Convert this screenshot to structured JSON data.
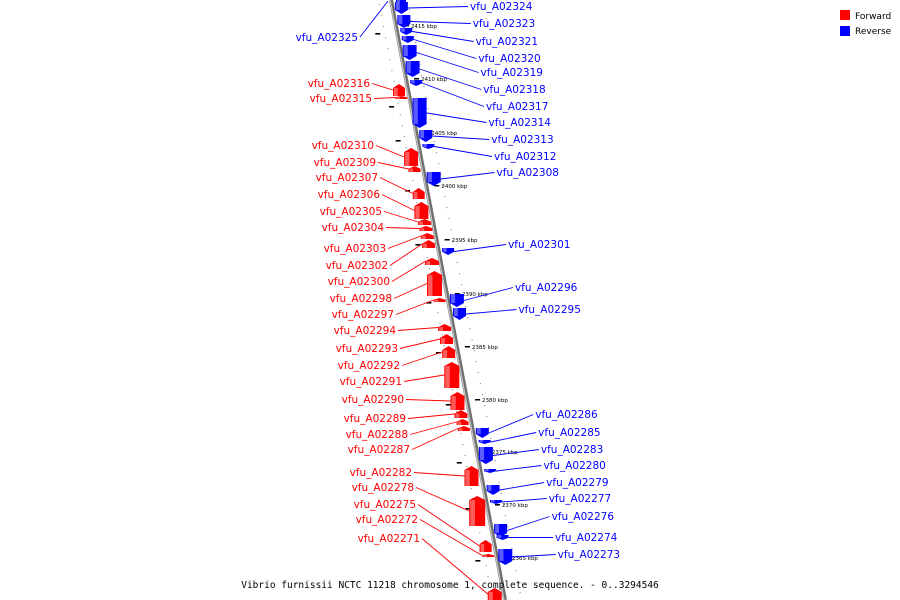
{
  "caption": "Vibrio furnissii NCTC 11218 chromosome 1, complete sequence. - 0..3294546",
  "legend": [
    {
      "label": "Forward",
      "color": "#ff0000"
    },
    {
      "label": "Reverse",
      "color": "#0000ff"
    }
  ],
  "colors": {
    "forward": "#ff0000",
    "reverse": "#0000ff",
    "backbone": "#808080"
  },
  "kbp_marks": [
    "2415 kbp",
    "2410 kbp",
    "2405 kbp",
    "2400 kbp",
    "2395 kbp",
    "2390 kbp",
    "2385 kbp",
    "2380 kbp",
    "2375 kbp",
    "2370 kbp",
    "2365 kbp"
  ],
  "forward_genes": [
    "vfu_A02316",
    "vfu_A02315",
    "vfu_A02310",
    "vfu_A02309",
    "vfu_A02307",
    "vfu_A02306",
    "vfu_A02305",
    "vfu_A02304",
    "vfu_A02303",
    "vfu_A02302",
    "vfu_A02300",
    "vfu_A02298",
    "vfu_A02297",
    "vfu_A02294",
    "vfu_A02293",
    "vfu_A02292",
    "vfu_A02291",
    "vfu_A02290",
    "vfu_A02289",
    "vfu_A02288",
    "vfu_A02287",
    "vfu_A02282",
    "vfu_A02278",
    "vfu_A02275",
    "vfu_A02272",
    "vfu_A02271"
  ],
  "reverse_genes": [
    "vfu_A02325",
    "vfu_A02324",
    "vfu_A02323",
    "vfu_A02321",
    "vfu_A02320",
    "vfu_A02319",
    "vfu_A02318",
    "vfu_A02317",
    "vfu_A02314",
    "vfu_A02313",
    "vfu_A02312",
    "vfu_A02308",
    "vfu_A02301",
    "vfu_A02296",
    "vfu_A02295",
    "vfu_A02286",
    "vfu_A02285",
    "vfu_A02283",
    "vfu_A02280",
    "vfu_A02279",
    "vfu_A02277",
    "vfu_A02276",
    "vfu_A02274",
    "vfu_A02273"
  ]
}
